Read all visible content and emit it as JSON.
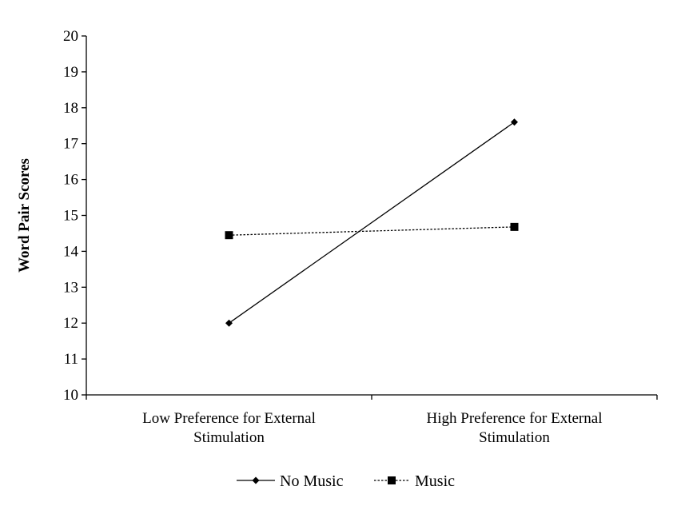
{
  "chart_data": {
    "type": "line",
    "title": "",
    "xlabel": "",
    "ylabel": "Word Pair Scores",
    "ylim": [
      10,
      20
    ],
    "yticks": [
      10,
      11,
      12,
      13,
      14,
      15,
      16,
      17,
      18,
      19,
      20
    ],
    "categories": [
      [
        "Low Preference for External",
        "Stimulation"
      ],
      [
        "High Preference for External",
        "Stimulation"
      ]
    ],
    "series": [
      {
        "name": "No Music",
        "values": [
          12.0,
          17.6
        ],
        "color": "#000000",
        "line_style": "solid",
        "marker": "diamond"
      },
      {
        "name": "Music",
        "values": [
          14.45,
          14.68
        ],
        "color": "#000000",
        "line_style": "dotted",
        "marker": "square"
      }
    ],
    "grid": false,
    "legend": "bottom-center"
  }
}
